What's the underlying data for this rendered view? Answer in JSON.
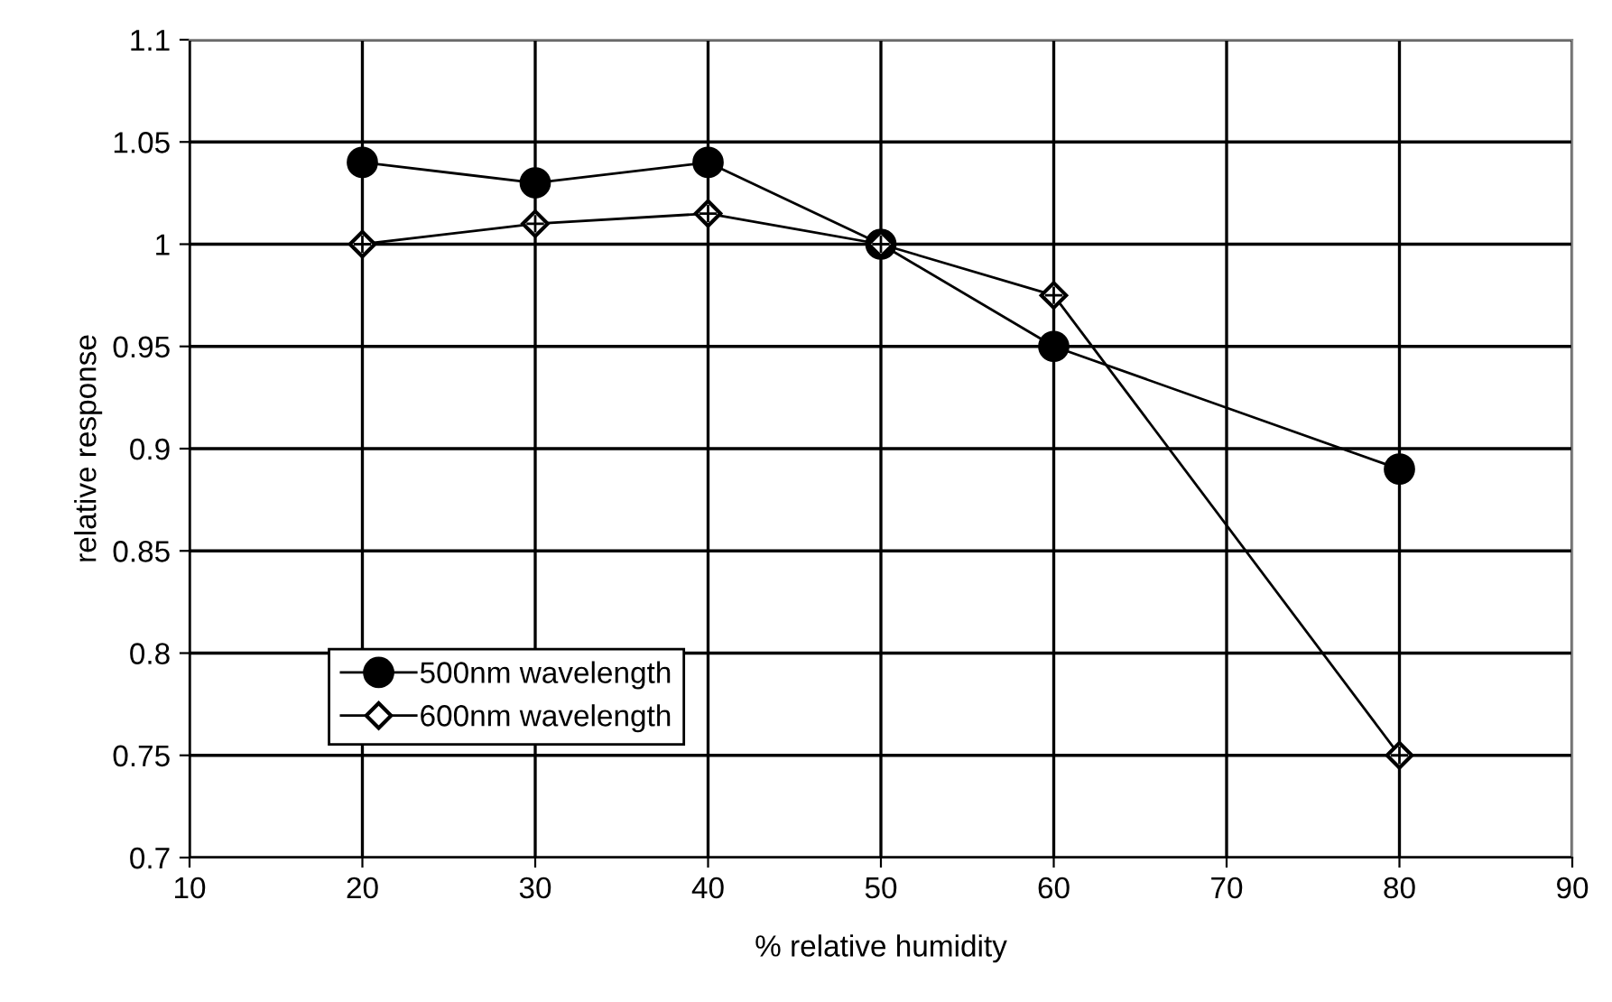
{
  "chart_data": {
    "type": "line",
    "xlabel": "% relative humidity",
    "ylabel": "relative response",
    "x": [
      20,
      30,
      40,
      50,
      60,
      80
    ],
    "series": [
      {
        "name": "500nm wavelength",
        "color": "#000000",
        "marker": "circle",
        "values": [
          1.04,
          1.03,
          1.04,
          1.0,
          0.95,
          0.89
        ]
      },
      {
        "name": "600nm wavelength",
        "color": "#000000",
        "marker": "diamond",
        "values": [
          1.0,
          1.01,
          1.015,
          1.0,
          0.975,
          0.75
        ]
      }
    ],
    "xlim": [
      10,
      90
    ],
    "xticks": [
      10,
      20,
      30,
      40,
      50,
      60,
      70,
      80,
      90
    ],
    "ylim": [
      0.7,
      1.1
    ],
    "yticks": [
      0.7,
      0.75,
      0.8,
      0.85,
      0.9,
      0.95,
      1,
      1.05,
      1.1
    ],
    "grid": true,
    "legend": "bottom left",
    "line_style": "solid"
  }
}
